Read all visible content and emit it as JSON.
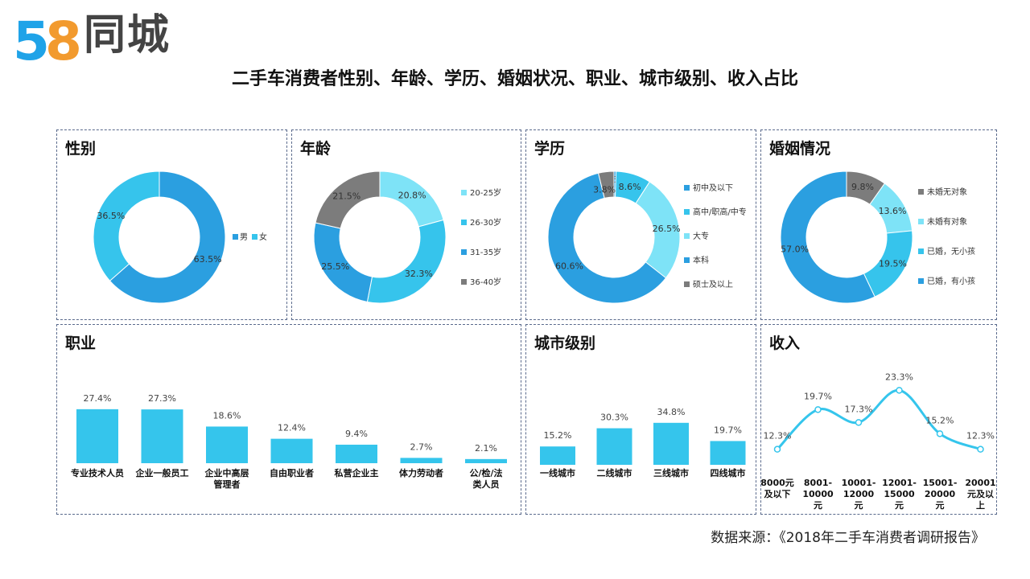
{
  "logo": {
    "number_five": "5",
    "number_eight": "8",
    "text": "同城"
  },
  "main_title": "二手车消费者性别、年龄、学历、婚姻状况、职业、城市级别、收入占比",
  "source": "数据来源：《2018年二手车消费者调研报告》",
  "colors": {
    "dark_blue": "#2B9FE0",
    "medium_blue": "#36C4EC",
    "light_blue": "#7EE3F7",
    "gray": "#7C7C7C",
    "bar": "#35C5EC"
  },
  "chart_data": [
    {
      "id": "gender",
      "type": "pie",
      "title": "性别",
      "categories": [
        "男",
        "女"
      ],
      "values": [
        63.5,
        36.5
      ],
      "labels": [
        "63.5%",
        "36.5%"
      ],
      "colors": [
        "#2B9FE0",
        "#36C4EC"
      ],
      "legend": "right"
    },
    {
      "id": "age",
      "type": "pie",
      "title": "年龄",
      "categories": [
        "20-25岁",
        "26-30岁",
        "31-35岁",
        "36-40岁"
      ],
      "values": [
        20.8,
        32.3,
        25.5,
        21.5
      ],
      "labels": [
        "20.8%",
        "32.3%",
        "25.5%",
        "21.5%"
      ],
      "colors": [
        "#7EE3F7",
        "#36C4EC",
        "#2B9FE0",
        "#7C7C7C"
      ],
      "legend": "right"
    },
    {
      "id": "education",
      "type": "pie",
      "title": "学历",
      "categories": [
        "初中及以下",
        "高中/职高/中专",
        "大专",
        "本科",
        "硕士及以上"
      ],
      "values": [
        0.5,
        8.6,
        26.5,
        60.6,
        3.8
      ],
      "labels": [
        "0.5%",
        "8.6%",
        "26.5%",
        "60.6%",
        "3.8%"
      ],
      "colors": [
        "#2B9FE0",
        "#36C4EC",
        "#7EE3F7",
        "#2B9FE0",
        "#7C7C7C"
      ],
      "legend": "right"
    },
    {
      "id": "marriage",
      "type": "pie",
      "title": "婚姻情况",
      "categories": [
        "未婚无对象",
        "未婚有对象",
        "已婚，无小孩",
        "已婚，有小孩"
      ],
      "values": [
        9.8,
        13.6,
        19.5,
        57.0
      ],
      "labels": [
        "9.8%",
        "13.6%",
        "19.5%",
        "57.0%"
      ],
      "colors": [
        "#7C7C7C",
        "#7EE3F7",
        "#36C4EC",
        "#2B9FE0"
      ],
      "legend": "right"
    },
    {
      "id": "occupation",
      "type": "bar",
      "title": "职业",
      "categories": [
        "专业技术人员",
        "企业一般员工",
        "企业中高层\n管理者",
        "自由职业者",
        "私营企业主",
        "体力劳动者",
        "公/检/法\n类人员"
      ],
      "values": [
        27.4,
        27.3,
        18.6,
        12.4,
        9.4,
        2.7,
        2.1
      ],
      "labels": [
        "27.4%",
        "27.3%",
        "18.6%",
        "12.4%",
        "9.4%",
        "2.7%",
        "2.1%"
      ],
      "ylim": [
        0,
        30
      ]
    },
    {
      "id": "city",
      "type": "bar",
      "title": "城市级别",
      "categories": [
        "一线城市",
        "二线城市",
        "三线城市",
        "四线城市"
      ],
      "values": [
        15.2,
        30.3,
        34.8,
        19.7
      ],
      "labels": [
        "15.2%",
        "30.3%",
        "34.8%",
        "19.7%"
      ],
      "ylim": [
        0,
        40
      ]
    },
    {
      "id": "income",
      "type": "line",
      "title": "收入",
      "categories": [
        "8000元\n及以下",
        "8001-\n10000\n元",
        "10001-\n12000\n元",
        "12001-\n15000\n元",
        "15001-\n20000\n元",
        "20001\n元及以\n上"
      ],
      "values": [
        12.3,
        19.7,
        17.3,
        23.3,
        15.2,
        12.3
      ],
      "labels": [
        "12.3%",
        "19.7%",
        "17.3%",
        "23.3%",
        "15.2%",
        "12.3%"
      ],
      "ylim": [
        10,
        25
      ]
    }
  ]
}
